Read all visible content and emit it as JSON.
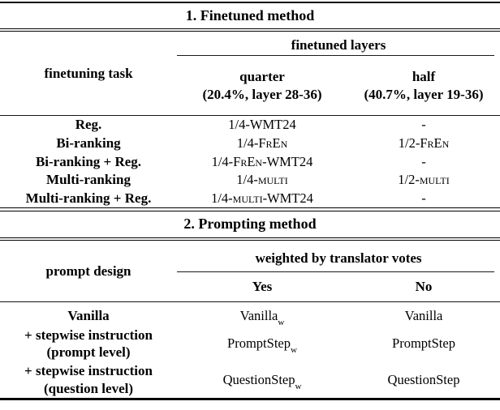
{
  "table": {
    "section1": {
      "title": "1. Finetuned method",
      "col1_header": "finetuning task",
      "span_header": "finetuned layers",
      "col2_header_line1": "quarter",
      "col2_header_line2": "(20.4%, layer 28-36)",
      "col3_header_line1": "half",
      "col3_header_line2": "(40.7%, layer 19-36)",
      "rows": [
        {
          "task": "Reg.",
          "quarter": "1/4-WMT24",
          "half": "-"
        },
        {
          "task": "Bi-ranking",
          "quarter": "1/4-FrEn",
          "half": "1/2-FrEn"
        },
        {
          "task": "Bi-ranking + Reg.",
          "quarter": "1/4-FrEn-WMT24",
          "half": "-"
        },
        {
          "task": "Multi-ranking",
          "quarter": "1/4-multi",
          "half": "1/2-multi"
        },
        {
          "task": "Multi-ranking + Reg.",
          "quarter": "1/4-multi-WMT24",
          "half": "-"
        }
      ]
    },
    "section2": {
      "title": "2. Prompting method",
      "col1_header": "prompt design",
      "span_header": "weighted by translator votes",
      "col2_header": "Yes",
      "col3_header": "No",
      "rows": [
        {
          "task1": "Vanilla",
          "task2": "",
          "yes_base": "Vanilla",
          "yes_sub": "w",
          "no": "Vanilla"
        },
        {
          "task1": "+ stepwise instruction",
          "task2": "(prompt level)",
          "yes_base": "PromptStep",
          "yes_sub": "w",
          "no": "PromptStep"
        },
        {
          "task1": "+ stepwise instruction",
          "task2": "(question level)",
          "yes_base": "QuestionStep",
          "yes_sub": "w",
          "no": "QuestionStep"
        }
      ]
    }
  }
}
